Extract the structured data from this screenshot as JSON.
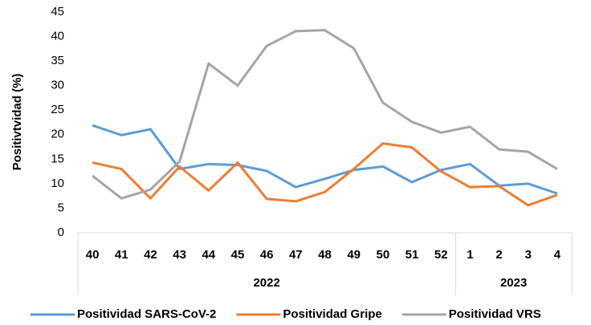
{
  "chart_data": {
    "type": "line",
    "y_label": "Positivtvidad (%)",
    "categories": [
      "40",
      "41",
      "42",
      "43",
      "44",
      "45",
      "46",
      "47",
      "48",
      "49",
      "50",
      "51",
      "52",
      "1",
      "2",
      "3",
      "4"
    ],
    "groups": [
      {
        "label": "2022",
        "count": 13
      },
      {
        "label": "2023",
        "count": 4
      }
    ],
    "series": [
      {
        "name": "Positividad SARS-CoV-2",
        "color": "#5b9bd5",
        "values": [
          21.9,
          19.9,
          21.1,
          13,
          14,
          13.8,
          12.6,
          9.3,
          11,
          12.8,
          13.5,
          10.3,
          12.8,
          14,
          9.6,
          10,
          8
        ]
      },
      {
        "name": "Positividad Gripe",
        "color": "#ed7d31",
        "values": [
          14.3,
          13,
          7,
          13.5,
          8.6,
          14.3,
          6.9,
          6.4,
          8.3,
          13,
          18.2,
          17.4,
          12.5,
          9.3,
          9.5,
          5.6,
          7.7
        ]
      },
      {
        "name": "Positividad VRS",
        "color": "#a5a5a5",
        "values": [
          11.6,
          7,
          8.8,
          14.5,
          34.5,
          30,
          38.1,
          41.1,
          41.3,
          37.6,
          26.5,
          22.6,
          20.4,
          21.6,
          17,
          16.5,
          13
        ]
      }
    ],
    "ylim": [
      0,
      45
    ],
    "yticks": [
      0,
      5,
      10,
      15,
      20,
      25,
      30,
      35,
      40,
      45
    ],
    "grid": false,
    "legend": "bottom"
  }
}
